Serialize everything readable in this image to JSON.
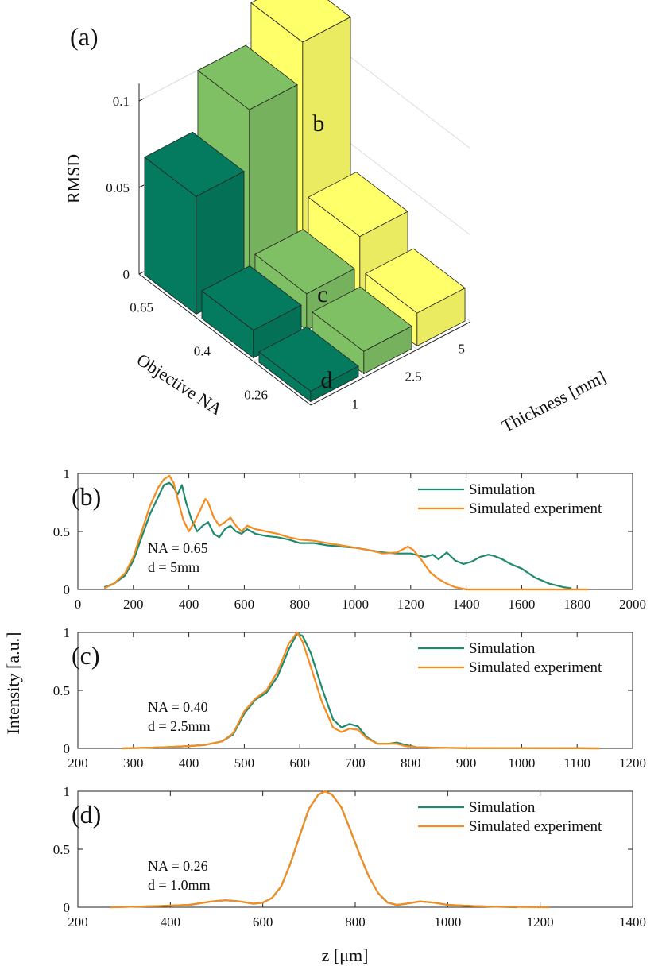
{
  "colors": {
    "dark_green": "#047a5e",
    "light_green": "#80c065",
    "yellow": "#ffff6a",
    "simulation": "#1f8a70",
    "simulated_experiment": "#f68c1f"
  },
  "chart_data": [
    {
      "type": "bar3d",
      "panel_label": "(a)",
      "zlabel": "RMSD",
      "xlabel": "Objective NA",
      "ylabel": "Thickness [mm]",
      "x_categories": [
        "0.65",
        "0.4",
        "0.26"
      ],
      "y_categories": [
        "1",
        "2.5",
        "5"
      ],
      "z_ticks": [
        "0",
        "0.05",
        "0.1"
      ],
      "zlim": [
        0,
        0.11
      ],
      "bars": [
        {
          "na": "0.65",
          "thickness": "1",
          "value": 0.068
        },
        {
          "na": "0.65",
          "thickness": "2.5",
          "value": 0.102
        },
        {
          "na": "0.65",
          "thickness": "5",
          "value": 0.125
        },
        {
          "na": "0.4",
          "thickness": "1",
          "value": 0.016
        },
        {
          "na": "0.4",
          "thickness": "2.5",
          "value": 0.021
        },
        {
          "na": "0.4",
          "thickness": "5",
          "value": 0.038
        },
        {
          "na": "0.26",
          "thickness": "1",
          "value": 0.006
        },
        {
          "na": "0.26",
          "thickness": "2.5",
          "value": 0.013
        },
        {
          "na": "0.26",
          "thickness": "5",
          "value": 0.019
        }
      ],
      "bar_labels": [
        {
          "text": "b",
          "na": "0.65",
          "thickness": "5"
        },
        {
          "text": "c",
          "na": "0.4",
          "thickness": "2.5"
        },
        {
          "text": "d",
          "na": "0.26",
          "thickness": "1"
        }
      ]
    },
    {
      "type": "line",
      "panel_label": "(b)",
      "annotation": [
        "NA = 0.65",
        "d = 5mm"
      ],
      "xlim": [
        0,
        2000
      ],
      "ylim": [
        0,
        1
      ],
      "x_ticks": [
        0,
        200,
        400,
        600,
        800,
        1000,
        1200,
        1400,
        1600,
        1800,
        2000
      ],
      "y_ticks": [
        "0",
        "0.5",
        "1"
      ],
      "legend_position": "top-right",
      "series": [
        {
          "name": "Simulation",
          "x": [
            95,
            130,
            170,
            200,
            230,
            260,
            290,
            310,
            330,
            345,
            360,
            375,
            390,
            410,
            430,
            450,
            470,
            490,
            510,
            530,
            550,
            570,
            590,
            610,
            640,
            680,
            720,
            760,
            800,
            850,
            900,
            950,
            1000,
            1050,
            1100,
            1150,
            1200,
            1250,
            1280,
            1300,
            1330,
            1360,
            1390,
            1420,
            1450,
            1480,
            1500,
            1530,
            1560,
            1600,
            1650,
            1700,
            1750,
            1780
          ],
          "y": [
            0.02,
            0.05,
            0.12,
            0.25,
            0.45,
            0.65,
            0.8,
            0.9,
            0.92,
            0.88,
            0.82,
            0.9,
            0.75,
            0.6,
            0.5,
            0.55,
            0.58,
            0.48,
            0.45,
            0.52,
            0.55,
            0.5,
            0.48,
            0.52,
            0.48,
            0.46,
            0.45,
            0.43,
            0.4,
            0.4,
            0.38,
            0.37,
            0.36,
            0.34,
            0.32,
            0.31,
            0.31,
            0.28,
            0.3,
            0.26,
            0.32,
            0.25,
            0.22,
            0.24,
            0.28,
            0.3,
            0.29,
            0.26,
            0.22,
            0.18,
            0.1,
            0.05,
            0.02,
            0.01
          ]
        },
        {
          "name": "Simulated experiment",
          "x": [
            95,
            130,
            170,
            200,
            230,
            260,
            290,
            310,
            330,
            345,
            360,
            380,
            400,
            420,
            440,
            460,
            470,
            490,
            510,
            530,
            550,
            570,
            590,
            610,
            640,
            680,
            720,
            760,
            800,
            850,
            900,
            950,
            1000,
            1050,
            1100,
            1150,
            1190,
            1210,
            1240,
            1270,
            1300,
            1330,
            1360,
            1400,
            1500,
            1600,
            1700,
            1800,
            1840
          ],
          "y": [
            0.01,
            0.05,
            0.14,
            0.28,
            0.5,
            0.72,
            0.88,
            0.95,
            0.98,
            0.92,
            0.78,
            0.6,
            0.5,
            0.58,
            0.68,
            0.78,
            0.75,
            0.62,
            0.55,
            0.58,
            0.62,
            0.55,
            0.5,
            0.55,
            0.52,
            0.5,
            0.48,
            0.45,
            0.43,
            0.42,
            0.4,
            0.38,
            0.36,
            0.34,
            0.31,
            0.32,
            0.37,
            0.34,
            0.25,
            0.15,
            0.09,
            0.05,
            0.02,
            0.0,
            0.0,
            0.0,
            0.0,
            0.0,
            0.0
          ]
        }
      ]
    },
    {
      "type": "line",
      "panel_label": "(c)",
      "annotation": [
        "NA = 0.40",
        "d = 2.5mm"
      ],
      "xlim": [
        200,
        1200
      ],
      "ylim": [
        0,
        1
      ],
      "x_ticks": [
        200,
        300,
        400,
        500,
        600,
        700,
        800,
        900,
        1000,
        1100,
        1200
      ],
      "y_ticks": [
        "0",
        "0.5",
        "1"
      ],
      "legend_position": "top-right",
      "series": [
        {
          "name": "Simulation",
          "x": [
            280,
            320,
            360,
            400,
            430,
            460,
            480,
            500,
            520,
            540,
            560,
            580,
            595,
            605,
            620,
            640,
            660,
            675,
            690,
            705,
            720,
            740,
            760,
            775,
            790,
            810,
            850,
            900,
            1000,
            1100,
            1140
          ],
          "y": [
            0.0,
            0.005,
            0.01,
            0.02,
            0.03,
            0.06,
            0.12,
            0.3,
            0.42,
            0.48,
            0.62,
            0.85,
            0.99,
            0.97,
            0.82,
            0.52,
            0.25,
            0.18,
            0.21,
            0.19,
            0.1,
            0.04,
            0.04,
            0.05,
            0.03,
            0.01,
            0.005,
            0.003,
            0.002,
            0.001,
            0.0
          ]
        },
        {
          "name": "Simulated experiment",
          "x": [
            280,
            320,
            360,
            400,
            430,
            460,
            480,
            500,
            520,
            540,
            560,
            580,
            595,
            605,
            620,
            640,
            660,
            675,
            690,
            705,
            720,
            740,
            760,
            775,
            790,
            810,
            850,
            900,
            1000,
            1100,
            1140
          ],
          "y": [
            0.0,
            0.005,
            0.01,
            0.02,
            0.03,
            0.06,
            0.13,
            0.32,
            0.43,
            0.5,
            0.66,
            0.9,
            1.0,
            0.92,
            0.7,
            0.4,
            0.18,
            0.14,
            0.17,
            0.16,
            0.09,
            0.04,
            0.04,
            0.04,
            0.02,
            0.01,
            0.005,
            0.003,
            0.002,
            0.001,
            0.0
          ]
        }
      ]
    },
    {
      "type": "line",
      "panel_label": "(d)",
      "annotation": [
        "NA = 0.26",
        "d = 1.0mm"
      ],
      "xlabel": "z [μm]",
      "xlim": [
        200,
        1400
      ],
      "ylim": [
        0,
        1
      ],
      "x_ticks": [
        200,
        400,
        600,
        800,
        1000,
        1200,
        1400
      ],
      "y_ticks": [
        "0",
        "0.5",
        "1"
      ],
      "legend_position": "top-right",
      "series": [
        {
          "name": "Simulation",
          "x": [
            270,
            320,
            380,
            440,
            490,
            520,
            550,
            580,
            600,
            620,
            640,
            660,
            680,
            700,
            720,
            735,
            750,
            770,
            790,
            810,
            830,
            850,
            870,
            890,
            910,
            940,
            970,
            1000,
            1050,
            1100,
            1150
          ],
          "y": [
            0.0,
            0.005,
            0.01,
            0.02,
            0.05,
            0.06,
            0.05,
            0.03,
            0.04,
            0.08,
            0.18,
            0.38,
            0.62,
            0.85,
            0.97,
            1.0,
            0.97,
            0.86,
            0.66,
            0.45,
            0.26,
            0.12,
            0.04,
            0.02,
            0.03,
            0.05,
            0.04,
            0.02,
            0.01,
            0.005,
            0.0
          ]
        },
        {
          "name": "Simulated experiment",
          "x": [
            270,
            320,
            380,
            440,
            490,
            520,
            550,
            580,
            600,
            620,
            640,
            660,
            680,
            700,
            720,
            735,
            750,
            770,
            790,
            810,
            830,
            850,
            870,
            890,
            910,
            940,
            970,
            1000,
            1050,
            1100,
            1150,
            1220
          ],
          "y": [
            0.0,
            0.005,
            0.01,
            0.02,
            0.05,
            0.06,
            0.05,
            0.03,
            0.04,
            0.08,
            0.18,
            0.38,
            0.62,
            0.85,
            0.97,
            1.0,
            0.97,
            0.86,
            0.66,
            0.45,
            0.26,
            0.12,
            0.04,
            0.02,
            0.03,
            0.05,
            0.04,
            0.02,
            0.01,
            0.005,
            0.003,
            0.0
          ]
        }
      ]
    }
  ],
  "shared_ylabel": "Intensity [a.u.]"
}
